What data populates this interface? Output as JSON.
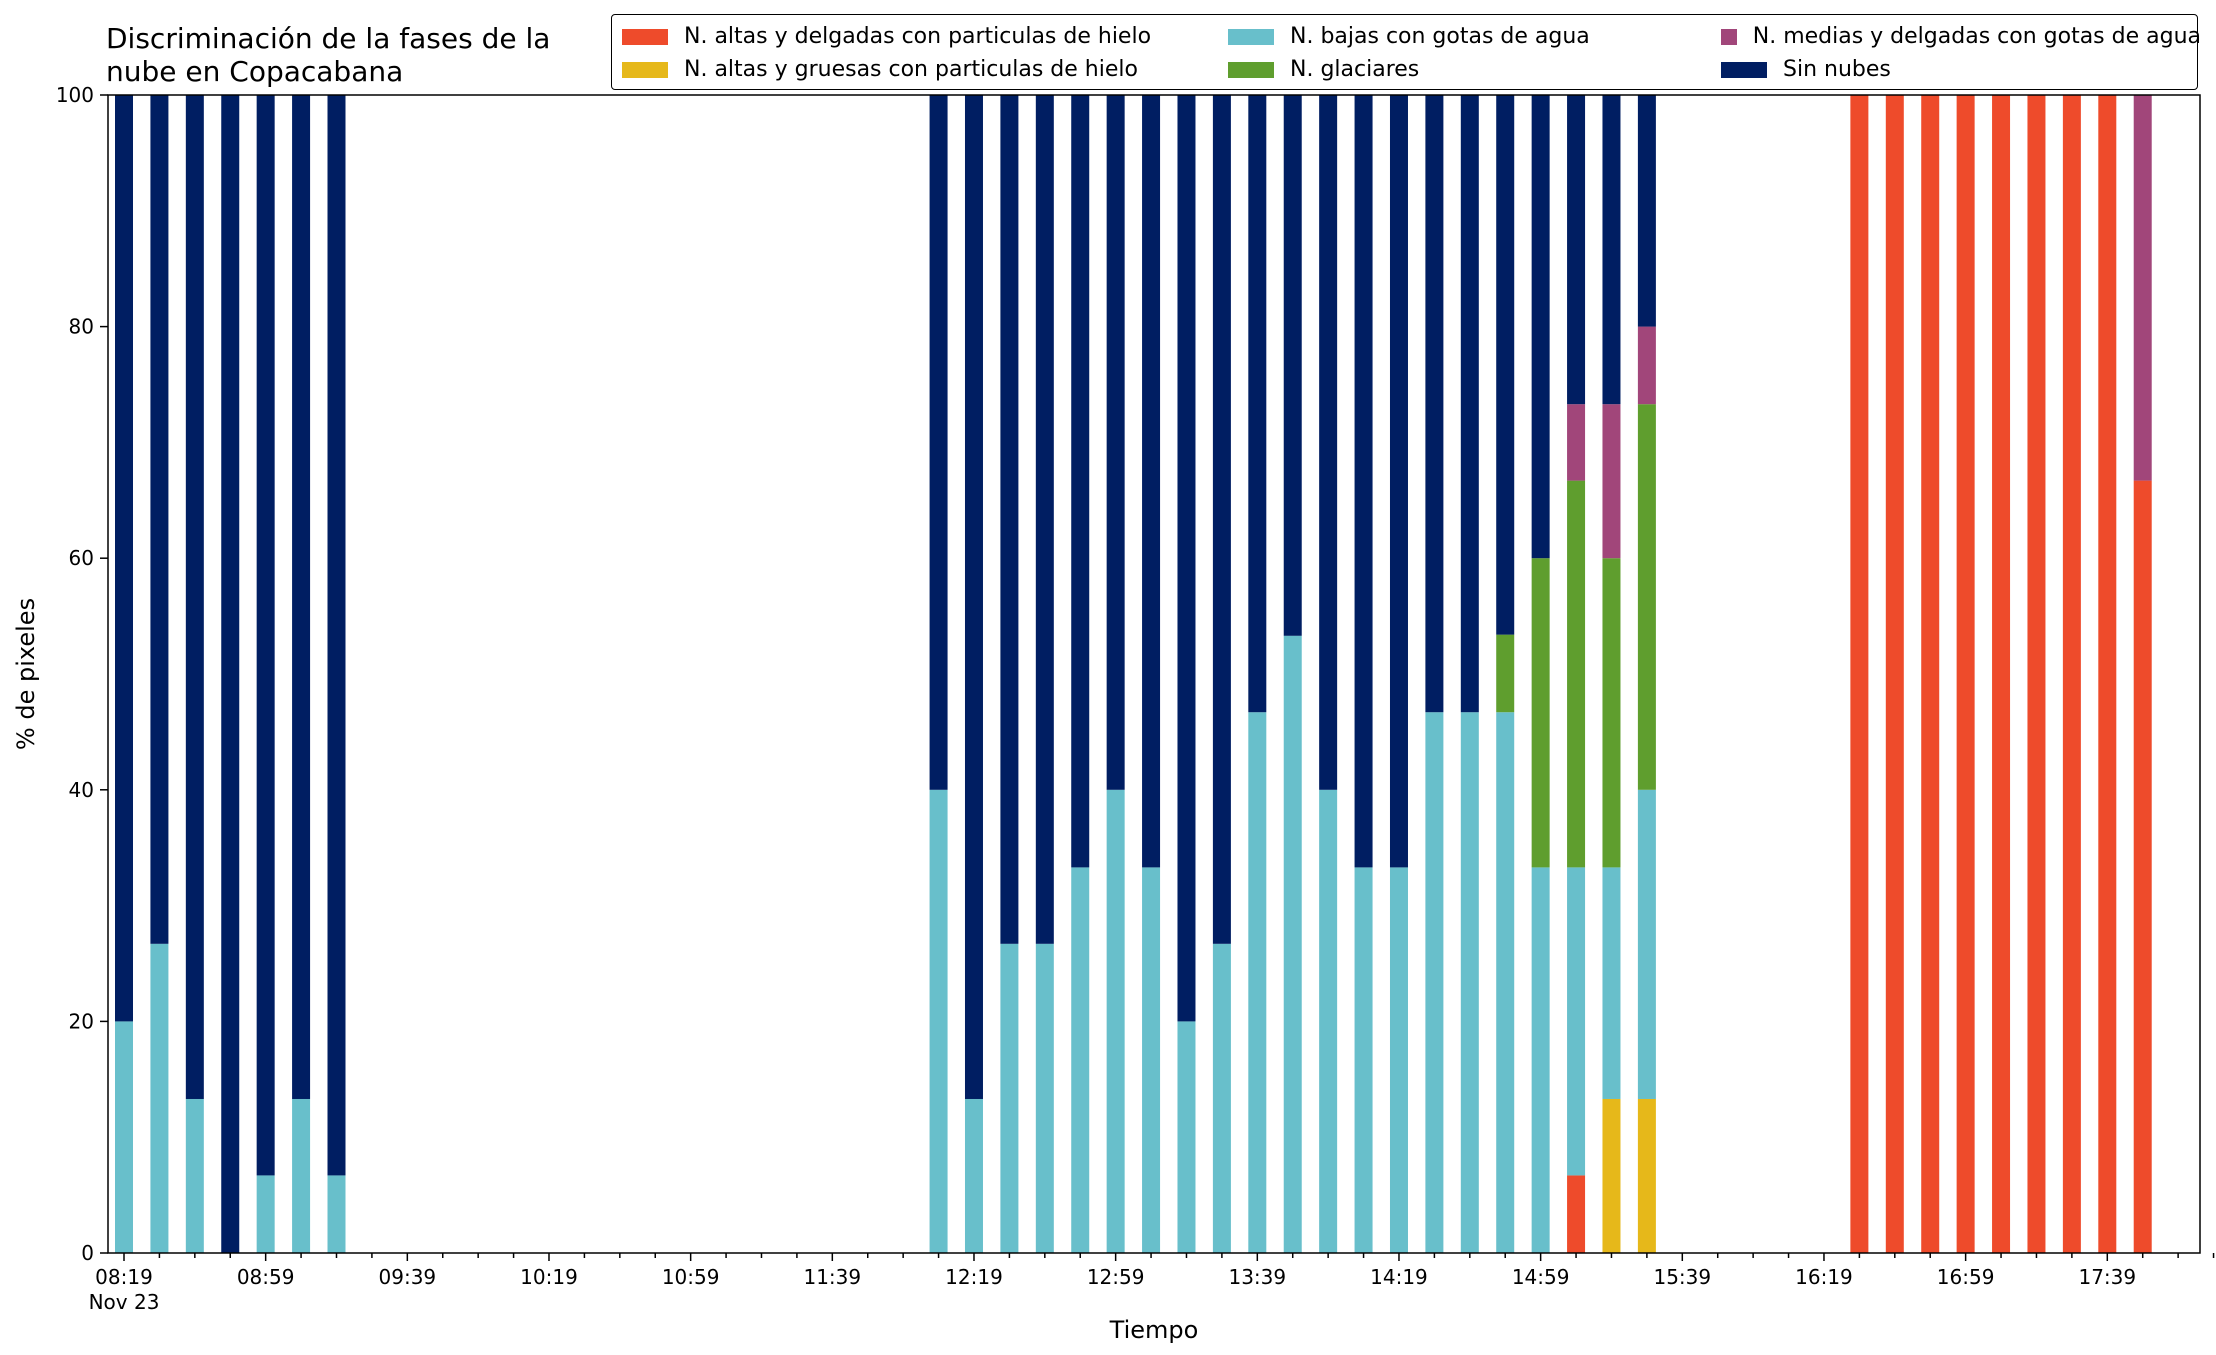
{
  "title_lines": [
    "Discriminación de la fases de la",
    "nube en Copacabana"
  ],
  "colors": {
    "alta_delgada_hielo": "#ee4b2b",
    "alta_gruesa_hielo": "#e6b81a",
    "baja_agua": "#68bfcb",
    "glaciar": "#5f9e2e",
    "media_agua": "#a1467a",
    "sin_nubes": "#001e62"
  },
  "legend": [
    {
      "label": "N. altas y delgadas con particulas de hielo",
      "color": "#ee4b2b"
    },
    {
      "label": "N. bajas con gotas de agua",
      "color": "#68bfcb"
    },
    {
      "label": "N. medias y delgadas con gotas de agua",
      "color": "#a1467a"
    },
    {
      "label": "N. altas y gruesas con particulas de hielo",
      "color": "#e6b81a"
    },
    {
      "label": "N. glaciares",
      "color": "#5f9e2e"
    },
    {
      "label": "Sin nubes",
      "color": "#001e62"
    }
  ],
  "chart_data": {
    "type": "bar",
    "stacked": true,
    "title": "Discriminación de la fases de la nube en Copacabana",
    "xlabel": "Tiempo",
    "ylabel": "% de pixeles",
    "ylim": [
      0,
      100
    ],
    "yticks": [
      0,
      20,
      40,
      60,
      80,
      100
    ],
    "x_start": "08:19",
    "x_end": "18:09",
    "x_ticks_major": [
      "08:19",
      "08:59",
      "09:39",
      "10:19",
      "10:59",
      "11:39",
      "12:19",
      "12:59",
      "13:39",
      "14:19",
      "14:59",
      "15:39",
      "16:19",
      "16:59",
      "17:39"
    ],
    "x_ticks_minor_step_minutes": 10,
    "x_date_label": "Nov 23",
    "legend_position": "top-right",
    "grid": false,
    "series_order": [
      "alta_delgada_hielo",
      "alta_gruesa_hielo",
      "baja_agua",
      "glaciar",
      "media_agua",
      "sin_nubes"
    ],
    "bars": [
      {
        "time": "08:19",
        "alta_delgada_hielo": 0,
        "alta_gruesa_hielo": 0,
        "baja_agua": 20,
        "glaciar": 0,
        "media_agua": 0,
        "sin_nubes": 80
      },
      {
        "time": "08:29",
        "alta_delgada_hielo": 0,
        "alta_gruesa_hielo": 0,
        "baja_agua": 26.7,
        "glaciar": 0,
        "media_agua": 0,
        "sin_nubes": 73.3
      },
      {
        "time": "08:39",
        "alta_delgada_hielo": 0,
        "alta_gruesa_hielo": 0,
        "baja_agua": 13.3,
        "glaciar": 0,
        "media_agua": 0,
        "sin_nubes": 86.7
      },
      {
        "time": "08:49",
        "alta_delgada_hielo": 0,
        "alta_gruesa_hielo": 0,
        "baja_agua": 0,
        "glaciar": 0,
        "media_agua": 0,
        "sin_nubes": 100
      },
      {
        "time": "08:59",
        "alta_delgada_hielo": 0,
        "alta_gruesa_hielo": 0,
        "baja_agua": 6.7,
        "glaciar": 0,
        "media_agua": 0,
        "sin_nubes": 93.3
      },
      {
        "time": "09:09",
        "alta_delgada_hielo": 0,
        "alta_gruesa_hielo": 0,
        "baja_agua": 13.3,
        "glaciar": 0,
        "media_agua": 0,
        "sin_nubes": 86.7
      },
      {
        "time": "09:19",
        "alta_delgada_hielo": 0,
        "alta_gruesa_hielo": 0,
        "baja_agua": 6.7,
        "glaciar": 0,
        "media_agua": 0,
        "sin_nubes": 93.3
      },
      {
        "time": "12:09",
        "alta_delgada_hielo": 0,
        "alta_gruesa_hielo": 0,
        "baja_agua": 40,
        "glaciar": 0,
        "media_agua": 0,
        "sin_nubes": 60
      },
      {
        "time": "12:19",
        "alta_delgada_hielo": 0,
        "alta_gruesa_hielo": 0,
        "baja_agua": 13.3,
        "glaciar": 0,
        "media_agua": 0,
        "sin_nubes": 86.7
      },
      {
        "time": "12:29",
        "alta_delgada_hielo": 0,
        "alta_gruesa_hielo": 0,
        "baja_agua": 26.7,
        "glaciar": 0,
        "media_agua": 0,
        "sin_nubes": 73.3
      },
      {
        "time": "12:39",
        "alta_delgada_hielo": 0,
        "alta_gruesa_hielo": 0,
        "baja_agua": 26.7,
        "glaciar": 0,
        "media_agua": 0,
        "sin_nubes": 73.3
      },
      {
        "time": "12:49",
        "alta_delgada_hielo": 0,
        "alta_gruesa_hielo": 0,
        "baja_agua": 33.3,
        "glaciar": 0,
        "media_agua": 0,
        "sin_nubes": 66.7
      },
      {
        "time": "12:59",
        "alta_delgada_hielo": 0,
        "alta_gruesa_hielo": 0,
        "baja_agua": 40,
        "glaciar": 0,
        "media_agua": 0,
        "sin_nubes": 60
      },
      {
        "time": "13:09",
        "alta_delgada_hielo": 0,
        "alta_gruesa_hielo": 0,
        "baja_agua": 33.3,
        "glaciar": 0,
        "media_agua": 0,
        "sin_nubes": 66.7
      },
      {
        "time": "13:19",
        "alta_delgada_hielo": 0,
        "alta_gruesa_hielo": 0,
        "baja_agua": 20,
        "glaciar": 0,
        "media_agua": 0,
        "sin_nubes": 80
      },
      {
        "time": "13:29",
        "alta_delgada_hielo": 0,
        "alta_gruesa_hielo": 0,
        "baja_agua": 26.7,
        "glaciar": 0,
        "media_agua": 0,
        "sin_nubes": 73.3
      },
      {
        "time": "13:39",
        "alta_delgada_hielo": 0,
        "alta_gruesa_hielo": 0,
        "baja_agua": 46.7,
        "glaciar": 0,
        "media_agua": 0,
        "sin_nubes": 53.3
      },
      {
        "time": "13:49",
        "alta_delgada_hielo": 0,
        "alta_gruesa_hielo": 0,
        "baja_agua": 53.3,
        "glaciar": 0,
        "media_agua": 0,
        "sin_nubes": 46.7
      },
      {
        "time": "13:59",
        "alta_delgada_hielo": 0,
        "alta_gruesa_hielo": 0,
        "baja_agua": 40,
        "glaciar": 0,
        "media_agua": 0,
        "sin_nubes": 60
      },
      {
        "time": "14:09",
        "alta_delgada_hielo": 0,
        "alta_gruesa_hielo": 0,
        "baja_agua": 33.3,
        "glaciar": 0,
        "media_agua": 0,
        "sin_nubes": 66.7
      },
      {
        "time": "14:19",
        "alta_delgada_hielo": 0,
        "alta_gruesa_hielo": 0,
        "baja_agua": 33.3,
        "glaciar": 0,
        "media_agua": 0,
        "sin_nubes": 66.7
      },
      {
        "time": "14:29",
        "alta_delgada_hielo": 0,
        "alta_gruesa_hielo": 0,
        "baja_agua": 46.7,
        "glaciar": 0,
        "media_agua": 0,
        "sin_nubes": 53.3
      },
      {
        "time": "14:39",
        "alta_delgada_hielo": 0,
        "alta_gruesa_hielo": 0,
        "baja_agua": 46.7,
        "glaciar": 0,
        "media_agua": 0,
        "sin_nubes": 53.3
      },
      {
        "time": "14:49",
        "alta_delgada_hielo": 0,
        "alta_gruesa_hielo": 0,
        "baja_agua": 46.7,
        "glaciar": 6.7,
        "media_agua": 0,
        "sin_nubes": 46.6
      },
      {
        "time": "14:59",
        "alta_delgada_hielo": 0,
        "alta_gruesa_hielo": 0,
        "baja_agua": 33.3,
        "glaciar": 26.7,
        "media_agua": 0,
        "sin_nubes": 40
      },
      {
        "time": "15:09",
        "alta_delgada_hielo": 6.7,
        "alta_gruesa_hielo": 0,
        "baja_agua": 26.6,
        "glaciar": 33.4,
        "media_agua": 6.6,
        "sin_nubes": 26.7
      },
      {
        "time": "15:19",
        "alta_delgada_hielo": 0,
        "alta_gruesa_hielo": 13.3,
        "baja_agua": 20,
        "glaciar": 26.7,
        "media_agua": 13.3,
        "sin_nubes": 26.7
      },
      {
        "time": "15:29",
        "alta_delgada_hielo": 0,
        "alta_gruesa_hielo": 13.3,
        "baja_agua": 26.7,
        "glaciar": 33.3,
        "media_agua": 6.7,
        "sin_nubes": 20
      },
      {
        "time": "16:29",
        "alta_delgada_hielo": 100,
        "alta_gruesa_hielo": 0,
        "baja_agua": 0,
        "glaciar": 0,
        "media_agua": 0,
        "sin_nubes": 0
      },
      {
        "time": "16:39",
        "alta_delgada_hielo": 100,
        "alta_gruesa_hielo": 0,
        "baja_agua": 0,
        "glaciar": 0,
        "media_agua": 0,
        "sin_nubes": 0
      },
      {
        "time": "16:49",
        "alta_delgada_hielo": 100,
        "alta_gruesa_hielo": 0,
        "baja_agua": 0,
        "glaciar": 0,
        "media_agua": 0,
        "sin_nubes": 0
      },
      {
        "time": "16:59",
        "alta_delgada_hielo": 100,
        "alta_gruesa_hielo": 0,
        "baja_agua": 0,
        "glaciar": 0,
        "media_agua": 0,
        "sin_nubes": 0
      },
      {
        "time": "17:09",
        "alta_delgada_hielo": 100,
        "alta_gruesa_hielo": 0,
        "baja_agua": 0,
        "glaciar": 0,
        "media_agua": 0,
        "sin_nubes": 0
      },
      {
        "time": "17:19",
        "alta_delgada_hielo": 100,
        "alta_gruesa_hielo": 0,
        "baja_agua": 0,
        "glaciar": 0,
        "media_agua": 0,
        "sin_nubes": 0
      },
      {
        "time": "17:29",
        "alta_delgada_hielo": 100,
        "alta_gruesa_hielo": 0,
        "baja_agua": 0,
        "glaciar": 0,
        "media_agua": 0,
        "sin_nubes": 0
      },
      {
        "time": "17:39",
        "alta_delgada_hielo": 100,
        "alta_gruesa_hielo": 0,
        "baja_agua": 0,
        "glaciar": 0,
        "media_agua": 0,
        "sin_nubes": 0
      },
      {
        "time": "17:49",
        "alta_delgada_hielo": 66.7,
        "alta_gruesa_hielo": 0,
        "baja_agua": 0,
        "glaciar": 0,
        "media_agua": 33.3,
        "sin_nubes": 0
      }
    ]
  }
}
